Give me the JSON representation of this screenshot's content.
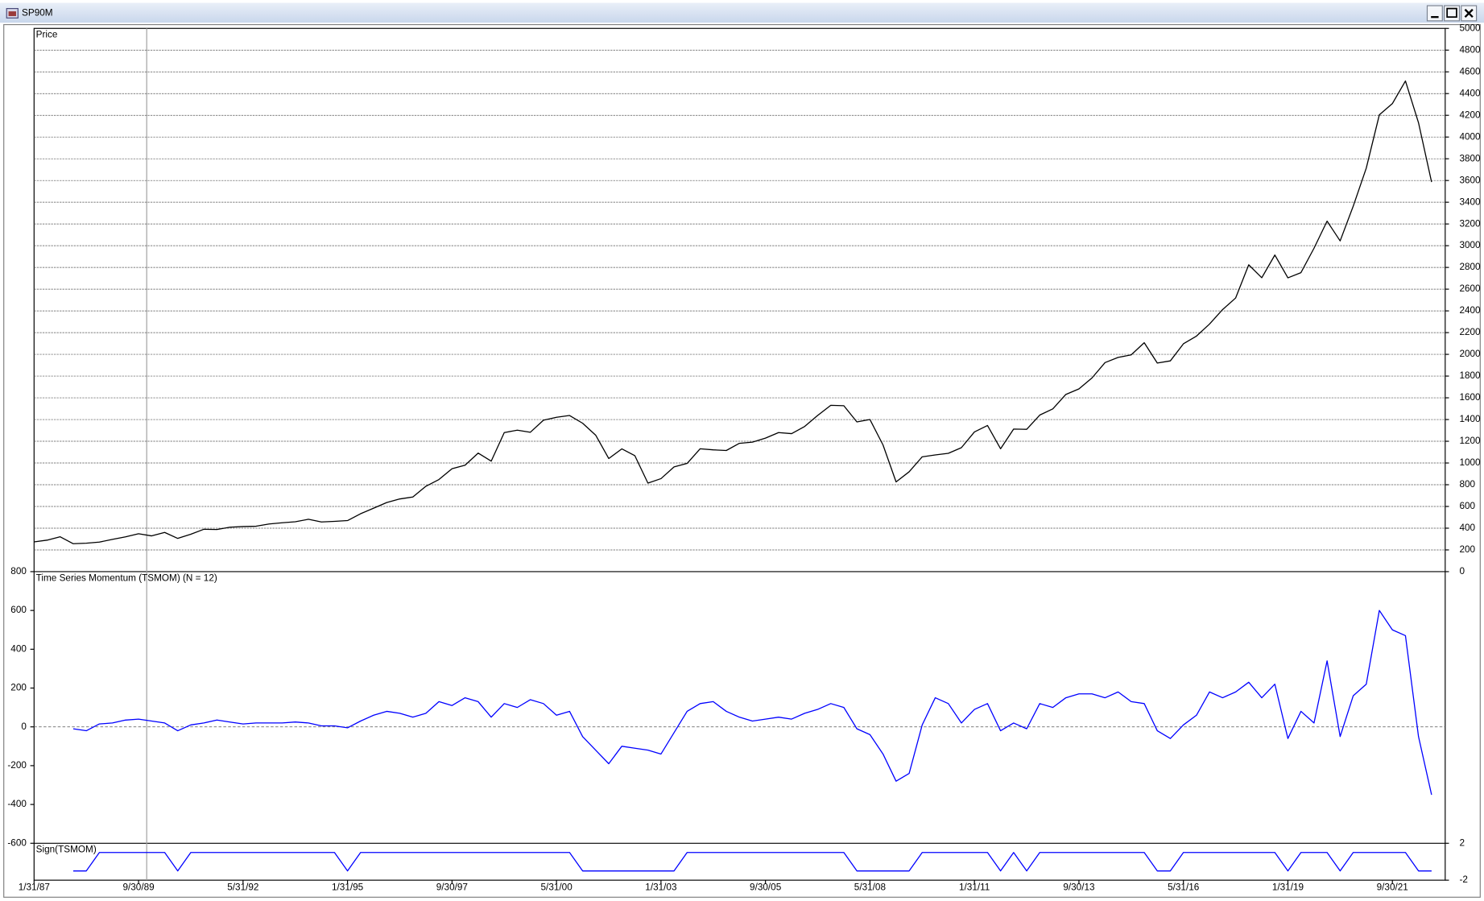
{
  "window": {
    "title": "SP90M"
  },
  "chart_data": [
    {
      "type": "line",
      "title": "Price",
      "x": [
        "1/31/87",
        "5/31/87",
        "9/30/87",
        "1/31/88",
        "5/31/88",
        "9/30/88",
        "1/31/89",
        "5/31/89",
        "9/30/89",
        "1/31/90",
        "5/31/90",
        "9/30/90",
        "1/31/91",
        "5/31/91",
        "9/30/91",
        "1/31/92",
        "5/31/92",
        "9/30/92",
        "1/31/93",
        "5/31/93",
        "9/30/93",
        "1/31/94",
        "5/31/94",
        "9/30/94",
        "1/31/95",
        "5/31/95",
        "9/30/95",
        "1/31/96",
        "5/31/96",
        "9/30/96",
        "1/31/97",
        "5/31/97",
        "9/30/97",
        "1/31/98",
        "5/31/98",
        "9/30/98",
        "1/31/99",
        "5/31/99",
        "9/30/99",
        "1/31/00",
        "5/31/00",
        "9/30/00",
        "1/31/01",
        "5/31/01",
        "9/30/01",
        "1/31/02",
        "5/31/02",
        "9/30/02",
        "1/31/03",
        "5/31/03",
        "9/30/03",
        "1/31/04",
        "5/31/04",
        "9/30/04",
        "1/31/05",
        "5/31/05",
        "9/30/05",
        "1/31/06",
        "5/31/06",
        "9/30/06",
        "1/31/07",
        "5/31/07",
        "9/30/07",
        "1/31/08",
        "5/31/08",
        "9/30/08",
        "1/31/09",
        "5/31/09",
        "9/30/09",
        "1/31/10",
        "5/31/10",
        "9/30/10",
        "1/31/11",
        "5/31/11",
        "9/30/11",
        "1/31/12",
        "5/31/12",
        "9/30/12",
        "1/31/13",
        "5/31/13",
        "9/30/13",
        "1/31/14",
        "5/31/14",
        "9/30/14",
        "1/31/15",
        "5/31/15",
        "9/30/15",
        "1/31/16",
        "5/31/16",
        "9/30/16",
        "1/31/17",
        "5/31/17",
        "9/30/17",
        "1/31/18",
        "5/31/18",
        "9/30/18",
        "1/31/19",
        "5/31/19",
        "9/30/19",
        "1/31/20",
        "5/31/20",
        "9/30/20",
        "1/31/21",
        "5/31/21",
        "9/30/21",
        "1/31/22",
        "5/31/22",
        "9/30/22"
      ],
      "series": [
        {
          "color": "#000000",
          "values": [
            274,
            290,
            321,
            257,
            262,
            272,
            297,
            320,
            349,
            329,
            361,
            306,
            344,
            390,
            388,
            409,
            415,
            418,
            439,
            450,
            459,
            482,
            457,
            463,
            470,
            533,
            584,
            636,
            669,
            687,
            786,
            848,
            947,
            980,
            1091,
            1017,
            1280,
            1302,
            1283,
            1394,
            1421,
            1437,
            1366,
            1256,
            1041,
            1130,
            1067,
            815,
            856,
            964,
            996,
            1131,
            1121,
            1115,
            1181,
            1192,
            1229,
            1280,
            1270,
            1336,
            1438,
            1531,
            1527,
            1378,
            1400,
            1166,
            826,
            919,
            1057,
            1074,
            1089,
            1141,
            1286,
            1345,
            1131,
            1312,
            1310,
            1441,
            1498,
            1631,
            1682,
            1783,
            1924,
            1972,
            1995,
            2107,
            1920,
            1940,
            2097,
            2168,
            2279,
            2412,
            2519,
            2824,
            2705,
            2914,
            2704,
            2752,
            2977,
            3226,
            3044,
            3363,
            3714,
            4204,
            4308,
            4516,
            4132,
            3586
          ]
        }
      ],
      "ylim": [
        0,
        5000
      ],
      "yticks": [
        0,
        200,
        400,
        600,
        800,
        1000,
        1200,
        1400,
        1600,
        1800,
        2000,
        2200,
        2400,
        2600,
        2800,
        3000,
        3200,
        3400,
        3600,
        3800,
        4000,
        4200,
        4400,
        4600,
        4800,
        5000
      ],
      "grid": true
    },
    {
      "type": "line",
      "title": "Time Series Momentum (TSMOM) (N = 12)",
      "title_color": "#0000ff",
      "series": [
        {
          "color": "#0000ff",
          "values": [
            null,
            null,
            null,
            -10,
            -20,
            15,
            20,
            35,
            40,
            30,
            20,
            -20,
            10,
            20,
            35,
            25,
            15,
            20,
            20,
            20,
            25,
            20,
            5,
            5,
            -5,
            30,
            60,
            80,
            70,
            50,
            70,
            130,
            110,
            150,
            130,
            50,
            120,
            100,
            140,
            120,
            60,
            80,
            -50,
            -120,
            -190,
            -100,
            -110,
            -120,
            -140,
            -30,
            80,
            120,
            130,
            80,
            50,
            30,
            40,
            50,
            40,
            70,
            90,
            120,
            100,
            -10,
            -40,
            -140,
            -280,
            -240,
            10,
            150,
            120,
            20,
            90,
            120,
            -20,
            20,
            -10,
            120,
            100,
            150,
            170,
            170,
            150,
            180,
            130,
            120,
            -20,
            -60,
            10,
            60,
            180,
            150,
            180,
            230,
            150,
            220,
            -60,
            80,
            20,
            340,
            -50,
            160,
            220,
            600,
            500,
            470,
            -50,
            -350
          ]
        }
      ],
      "ylim": [
        -600,
        800
      ],
      "yticks": [
        -600,
        -400,
        -200,
        0,
        200,
        400,
        600,
        800
      ],
      "zero_line": true
    },
    {
      "type": "line",
      "title": "Sign(TSMOM)",
      "title_color": "#0000ff",
      "series": [
        {
          "color": "#0000ff",
          "values": [
            null,
            null,
            null,
            -1,
            -1,
            1,
            1,
            1,
            1,
            1,
            1,
            -1,
            1,
            1,
            1,
            1,
            1,
            1,
            1,
            1,
            1,
            1,
            1,
            1,
            -1,
            1,
            1,
            1,
            1,
            1,
            1,
            1,
            1,
            1,
            1,
            1,
            1,
            1,
            1,
            1,
            1,
            1,
            -1,
            -1,
            -1,
            -1,
            -1,
            -1,
            -1,
            -1,
            1,
            1,
            1,
            1,
            1,
            1,
            1,
            1,
            1,
            1,
            1,
            1,
            1,
            -1,
            -1,
            -1,
            -1,
            -1,
            1,
            1,
            1,
            1,
            1,
            1,
            -1,
            1,
            -1,
            1,
            1,
            1,
            1,
            1,
            1,
            1,
            1,
            1,
            -1,
            -1,
            1,
            1,
            1,
            1,
            1,
            1,
            1,
            1,
            -1,
            1,
            1,
            1,
            -1,
            1,
            1,
            1,
            1,
            1,
            -1,
            -1
          ]
        }
      ],
      "ylim": [
        -2,
        2
      ],
      "yticks": [
        -2,
        2
      ],
      "xticks": [
        "1/31/87",
        "9/30/89",
        "5/31/92",
        "1/31/95",
        "9/30/97",
        "5/31/00",
        "1/31/03",
        "9/30/05",
        "5/31/08",
        "1/31/11",
        "9/30/13",
        "5/31/16",
        "1/31/19",
        "9/30/21"
      ]
    }
  ]
}
